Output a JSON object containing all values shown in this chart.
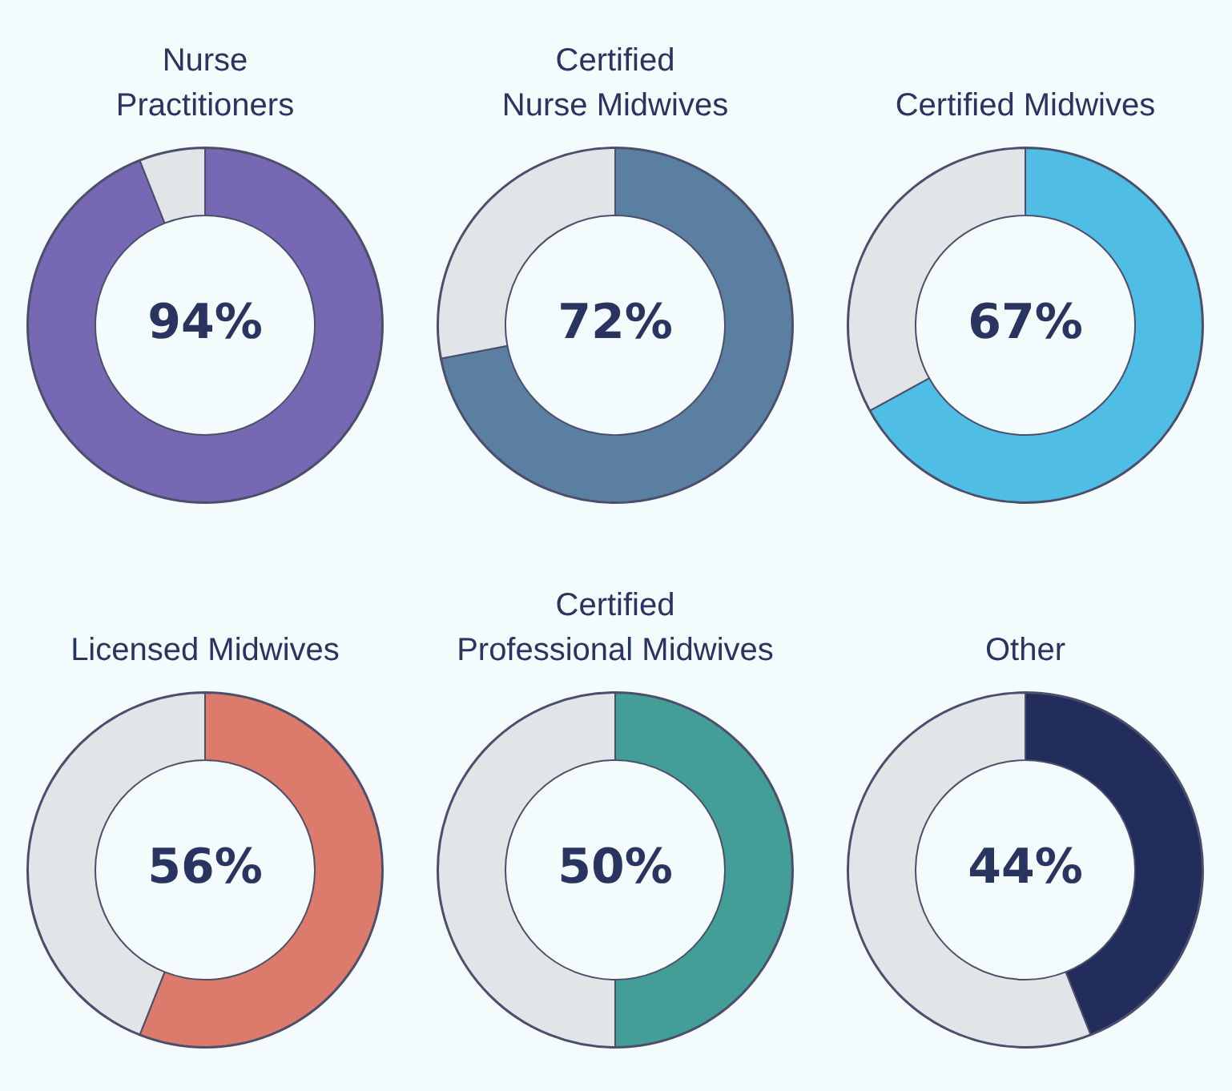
{
  "chart_data": [
    {
      "type": "donut",
      "title": "Nurse\nPractitioners",
      "categories": [
        null,
        null
      ],
      "values": [
        94,
        6
      ],
      "colors": [
        "#7668b3",
        "#e1e5e8"
      ],
      "value_labels": [
        "94%",
        null
      ]
    },
    {
      "type": "donut",
      "title": "Certified\nNurse Midwives",
      "categories": [
        null,
        null
      ],
      "values": [
        72,
        28
      ],
      "colors": [
        "#5a7fa0",
        "#e1e5e8"
      ],
      "value_labels": [
        "72%",
        null
      ]
    },
    {
      "type": "donut",
      "title": "Certified Midwives",
      "categories": [
        null,
        null
      ],
      "values": [
        67,
        33
      ],
      "colors": [
        "#50bee4",
        "#e1e5e8"
      ],
      "value_labels": [
        "67%",
        null
      ]
    },
    {
      "type": "donut",
      "title": "Licensed Midwives",
      "categories": [
        null,
        null
      ],
      "values": [
        56,
        44
      ],
      "colors": [
        "#dc7a6c",
        "#e1e5e8"
      ],
      "value_labels": [
        "56%",
        null
      ]
    },
    {
      "type": "donut",
      "title": "Certified\nProfessional Midwives",
      "categories": [
        null,
        null
      ],
      "values": [
        50,
        50
      ],
      "colors": [
        "#439e98",
        "#e1e5e8"
      ],
      "value_labels": [
        "50%",
        null
      ]
    },
    {
      "type": "donut",
      "title": "Other",
      "categories": [
        null,
        null
      ],
      "values": [
        44,
        56
      ],
      "colors": [
        "#222d5c",
        "#e1e5e8"
      ],
      "value_labels": [
        "44%",
        null
      ]
    }
  ]
}
